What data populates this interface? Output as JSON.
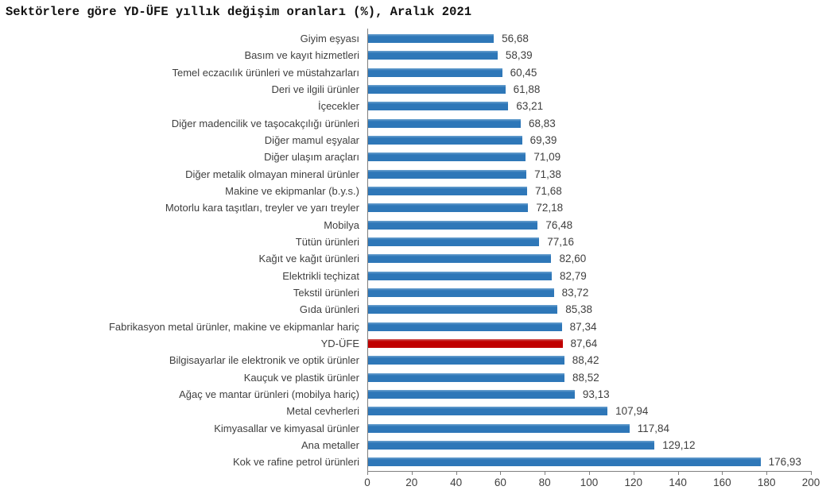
{
  "title": "Sektörlere göre YD-ÜFE yıllık değişim oranları (%), Aralık 2021",
  "colors": {
    "bar_blue": "#2e77b8",
    "bar_highlight_red": "#c00000",
    "axis_gray": "#7f7f7f",
    "label_text": "#3f3f3f",
    "title_text": "#111111"
  },
  "chart_data": {
    "type": "bar",
    "orientation": "horizontal",
    "title": "Sektörlere göre YD-ÜFE yıllık değişim oranları (%), Aralık 2021",
    "xlabel": "",
    "ylabel": "",
    "xlim": [
      0,
      200
    ],
    "x_ticks": [
      0,
      20,
      40,
      60,
      80,
      100,
      120,
      140,
      160,
      180,
      200
    ],
    "grid": false,
    "legend": "none",
    "highlight_category": "YD-ÜFE",
    "highlight_index": 18,
    "categories": [
      "Giyim eşyası",
      "Basım ve kayıt hizmetleri",
      "Temel eczacılık ürünleri ve müstahzarları",
      "Deri ve ilgili ürünler",
      "İçecekler",
      "Diğer madencilik ve taşocakçılığı ürünleri",
      "Diğer mamul eşyalar",
      "Diğer ulaşım araçları",
      "Diğer metalik olmayan mineral ürünler",
      "Makine ve ekipmanlar (b.y.s.)",
      "Motorlu kara taşıtları, treyler ve yarı treyler",
      "Mobilya",
      "Tütün ürünleri",
      "Kağıt ve kağıt ürünleri",
      "Elektrikli teçhizat",
      "Tekstil ürünleri",
      "Gıda ürünleri",
      "Fabrikasyon metal ürünler, makine ve ekipmanlar hariç",
      "YD-ÜFE",
      "Bilgisayarlar ile elektronik ve optik ürünler",
      "Kauçuk ve plastik ürünler",
      "Ağaç ve mantar ürünleri (mobilya hariç)",
      "Metal cevherleri",
      "Kimyasallar ve kimyasal ürünler",
      "Ana metaller",
      "Kok ve rafine petrol ürünleri"
    ],
    "values": [
      56.68,
      58.39,
      60.45,
      61.88,
      63.21,
      68.83,
      69.39,
      71.09,
      71.38,
      71.68,
      72.18,
      76.48,
      77.16,
      82.6,
      82.79,
      83.72,
      85.38,
      87.34,
      87.64,
      88.42,
      88.52,
      93.13,
      107.94,
      117.84,
      129.12,
      176.93
    ],
    "value_labels": [
      "56,68",
      "58,39",
      "60,45",
      "61,88",
      "63,21",
      "68,83",
      "69,39",
      "71,09",
      "71,38",
      "71,68",
      "72,18",
      "76,48",
      "77,16",
      "82,60",
      "82,79",
      "83,72",
      "85,38",
      "87,34",
      "87,64",
      "88,42",
      "88,52",
      "93,13",
      "107,94",
      "117,84",
      "129,12",
      "176,93"
    ],
    "x_tick_labels": [
      "0",
      "20",
      "40",
      "60",
      "80",
      "100",
      "120",
      "140",
      "160",
      "180",
      "200"
    ]
  }
}
